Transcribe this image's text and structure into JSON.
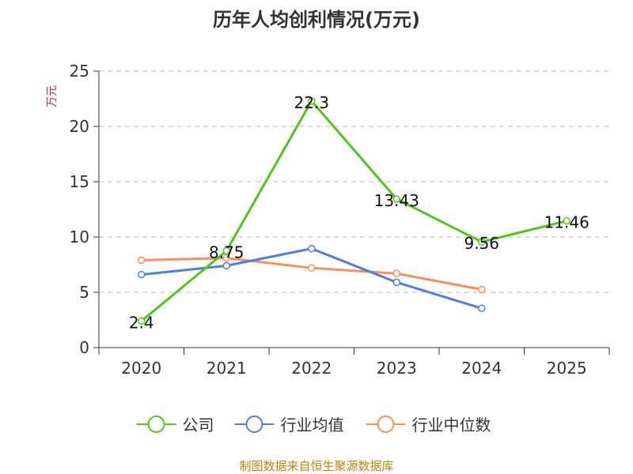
{
  "chart_data": {
    "type": "line",
    "title": "历年人均创利情况(万元)",
    "ylabel": "万元",
    "ylim": [
      0,
      25
    ],
    "yticks": [
      0,
      5,
      10,
      15,
      20,
      25
    ],
    "categories": [
      "2020",
      "2021",
      "2022",
      "2023",
      "2024",
      "2025"
    ],
    "grid": true,
    "legend_position": "bottom",
    "series": [
      {
        "name": "公司",
        "color": "#52c41a",
        "values": [
          2.4,
          8.75,
          22.3,
          13.43,
          9.56,
          11.46
        ],
        "labels": [
          "2.4",
          "8.75",
          "22.3",
          "13.43",
          "9.56",
          "11.46"
        ]
      },
      {
        "name": "行业均值",
        "color": "#4f7fdc",
        "values": [
          6.6,
          7.4,
          8.95,
          5.9,
          3.55,
          null
        ]
      },
      {
        "name": "行业中位数",
        "color": "#f7905a",
        "values": [
          7.9,
          8.1,
          7.2,
          6.7,
          5.25,
          null
        ]
      }
    ]
  },
  "source": "制图数据来自恒生聚源数据库"
}
